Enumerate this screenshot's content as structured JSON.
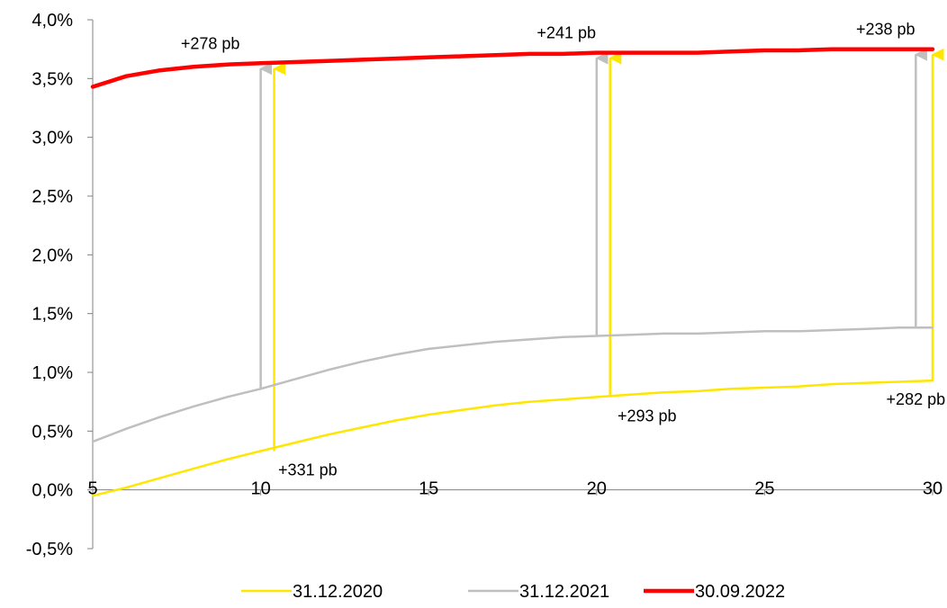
{
  "chart_data": {
    "type": "line",
    "title": "",
    "xlabel": "",
    "ylabel": "",
    "xlim": [
      5,
      30
    ],
    "ylim": [
      -0.5,
      4.0
    ],
    "x_ticks": [
      5,
      10,
      15,
      20,
      25,
      30
    ],
    "x_tick_labels": [
      "5",
      "10",
      "15",
      "20",
      "25",
      "30"
    ],
    "y_ticks": [
      -0.5,
      0.0,
      0.5,
      1.0,
      1.5,
      2.0,
      2.5,
      3.0,
      3.5,
      4.0
    ],
    "y_tick_labels": [
      "-0,5%",
      "0,0%",
      "0,5%",
      "1,0%",
      "1,5%",
      "2,0%",
      "2,5%",
      "3,0%",
      "3,5%",
      "4,0%"
    ],
    "grid": false,
    "legend_position": "bottom",
    "series": [
      {
        "name": "31.12.2020",
        "color": "#FFE600",
        "x": [
          5,
          6,
          7,
          8,
          9,
          10,
          11,
          12,
          13,
          14,
          15,
          16,
          17,
          18,
          19,
          20,
          21,
          22,
          23,
          24,
          25,
          26,
          27,
          28,
          29,
          30
        ],
        "values": [
          -0.05,
          0.02,
          0.1,
          0.18,
          0.26,
          0.33,
          0.4,
          0.47,
          0.53,
          0.59,
          0.64,
          0.68,
          0.72,
          0.75,
          0.77,
          0.79,
          0.81,
          0.83,
          0.84,
          0.86,
          0.87,
          0.88,
          0.9,
          0.91,
          0.92,
          0.93
        ]
      },
      {
        "name": "31.12.2021",
        "color": "#BFBFBF",
        "x": [
          5,
          6,
          7,
          8,
          9,
          10,
          11,
          12,
          13,
          14,
          15,
          16,
          17,
          18,
          19,
          20,
          21,
          22,
          23,
          24,
          25,
          26,
          27,
          28,
          29,
          30
        ],
        "values": [
          0.41,
          0.52,
          0.62,
          0.71,
          0.79,
          0.86,
          0.94,
          1.02,
          1.09,
          1.15,
          1.2,
          1.23,
          1.26,
          1.28,
          1.3,
          1.31,
          1.32,
          1.33,
          1.33,
          1.34,
          1.35,
          1.35,
          1.36,
          1.37,
          1.38,
          1.38
        ]
      },
      {
        "name": "30.09.2022",
        "color": "#FF0000",
        "x": [
          5,
          6,
          7,
          8,
          9,
          10,
          11,
          12,
          13,
          14,
          15,
          16,
          17,
          18,
          19,
          20,
          21,
          22,
          23,
          24,
          25,
          26,
          27,
          28,
          29,
          30
        ],
        "values": [
          3.43,
          3.52,
          3.57,
          3.6,
          3.62,
          3.63,
          3.64,
          3.65,
          3.66,
          3.67,
          3.68,
          3.69,
          3.7,
          3.71,
          3.71,
          3.72,
          3.72,
          3.72,
          3.72,
          3.73,
          3.74,
          3.74,
          3.75,
          3.75,
          3.75,
          3.75
        ]
      }
    ],
    "annotations": [
      {
        "series": "31.12.2021",
        "x": 10,
        "from": 0.86,
        "to": 3.63,
        "text": "+278 pb",
        "label_anchor": "above",
        "label_x": 8.5
      },
      {
        "series": "31.12.2020",
        "x": 10.4,
        "from": 0.33,
        "to": 3.63,
        "text": "+331 pb",
        "label_anchor": "below",
        "label_x": 11.4
      },
      {
        "series": "31.12.2021",
        "x": 20,
        "from": 1.31,
        "to": 3.72,
        "text": "+241 pb",
        "label_anchor": "above",
        "label_x": 19.1
      },
      {
        "series": "31.12.2020",
        "x": 20.4,
        "from": 0.79,
        "to": 3.72,
        "text": "+293 pb",
        "label_anchor": "below",
        "label_x": 21.5
      },
      {
        "series": "31.12.2021",
        "x": 29.5,
        "from": 1.38,
        "to": 3.75,
        "text": "+238 pb",
        "label_anchor": "above",
        "label_x": 28.6
      },
      {
        "series": "31.12.2020",
        "x": 30,
        "from": 0.93,
        "to": 3.75,
        "text": "+282 pb",
        "label_anchor": "below",
        "label_x": 29.5
      }
    ]
  }
}
